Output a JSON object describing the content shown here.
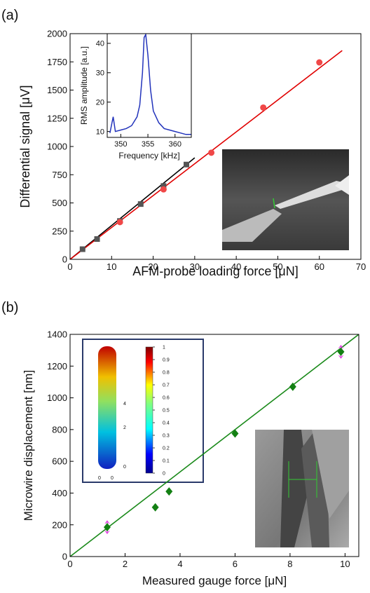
{
  "chart_data": [
    {
      "type": "scatter",
      "panel_label": "(a)",
      "x_label": "AFM-probe loading force [μN]",
      "y_label": "Differential signal [μV]",
      "xlim": [
        0,
        70
      ],
      "xticks": [
        0,
        10,
        20,
        30,
        40,
        50,
        60,
        70
      ],
      "ylim": [
        0,
        2000
      ],
      "yticks": [
        0,
        250,
        500,
        750,
        1000,
        1250,
        1500,
        1750,
        2000
      ],
      "series": [
        {
          "mode": "line",
          "color": "#000000",
          "x": [
            0,
            30
          ],
          "values": [
            0,
            900
          ]
        },
        {
          "mode": "line",
          "color": "#e00000",
          "x": [
            0,
            65.5
          ],
          "values": [
            0,
            1850
          ]
        },
        {
          "mode": "marker",
          "marker": "square",
          "color": "#555555",
          "x": [
            3,
            6.5,
            12,
            17,
            22.5,
            28
          ],
          "values": [
            90,
            180,
            340,
            490,
            650,
            840
          ]
        },
        {
          "mode": "marker",
          "marker": "circle",
          "color": "#f04848",
          "x": [
            12,
            22.5,
            34,
            46.5,
            60
          ],
          "values": [
            330,
            620,
            945,
            1345,
            1745
          ]
        }
      ]
    },
    {
      "type": "line",
      "x_label": "Frequency [kHz]",
      "y_label": "RMS amplitude [a.u.]",
      "xlim": [
        347.5,
        363
      ],
      "xticks": [
        350,
        355,
        360
      ],
      "ylim": [
        8,
        43.3
      ],
      "yticks": [
        10,
        20,
        30,
        40
      ],
      "series": [
        {
          "mode": "line",
          "color": "#2233bb",
          "x": [
            348,
            348.6,
            349,
            350,
            351,
            352,
            353,
            353.5,
            354,
            354.3,
            354.6,
            355,
            355.5,
            356,
            357,
            358,
            359,
            360,
            361,
            362,
            363
          ],
          "values": [
            9.5,
            15,
            10,
            10.5,
            11,
            12,
            15,
            19,
            30,
            42,
            43,
            36,
            24,
            17,
            13,
            11,
            10.5,
            10,
            9.5,
            9,
            9
          ]
        }
      ]
    },
    {
      "type": "scatter",
      "panel_label": "(b)",
      "x_label": "Measured gauge force  [μN]",
      "y_label": "Microwire displacement [nm]",
      "xlim": [
        0,
        10.5
      ],
      "xticks": [
        0,
        2,
        4,
        6,
        8,
        10
      ],
      "ylim": [
        0,
        1400
      ],
      "yticks": [
        0,
        200,
        400,
        600,
        800,
        1000,
        1200,
        1400
      ],
      "colorbar_ticks": [
        0,
        0.1,
        0.2,
        0.3,
        0.4,
        0.5,
        0.6,
        0.7,
        0.8,
        0.9,
        1
      ],
      "model_ticks": [
        4,
        2,
        0
      ],
      "series": [
        {
          "mode": "line",
          "color": "#1a8a1a",
          "x": [
            0,
            10.5
          ],
          "values": [
            0,
            1400
          ]
        },
        {
          "mode": "marker",
          "marker": "diamond",
          "color": "#138013",
          "x": [
            1.35,
            3.1,
            3.6,
            6,
            8.1,
            9.85
          ],
          "values": [
            185,
            310,
            410,
            775,
            1070,
            1290
          ],
          "errors": [
            40,
            null,
            null,
            null,
            null,
            40
          ],
          "error_color": "#e040e0"
        }
      ]
    }
  ]
}
